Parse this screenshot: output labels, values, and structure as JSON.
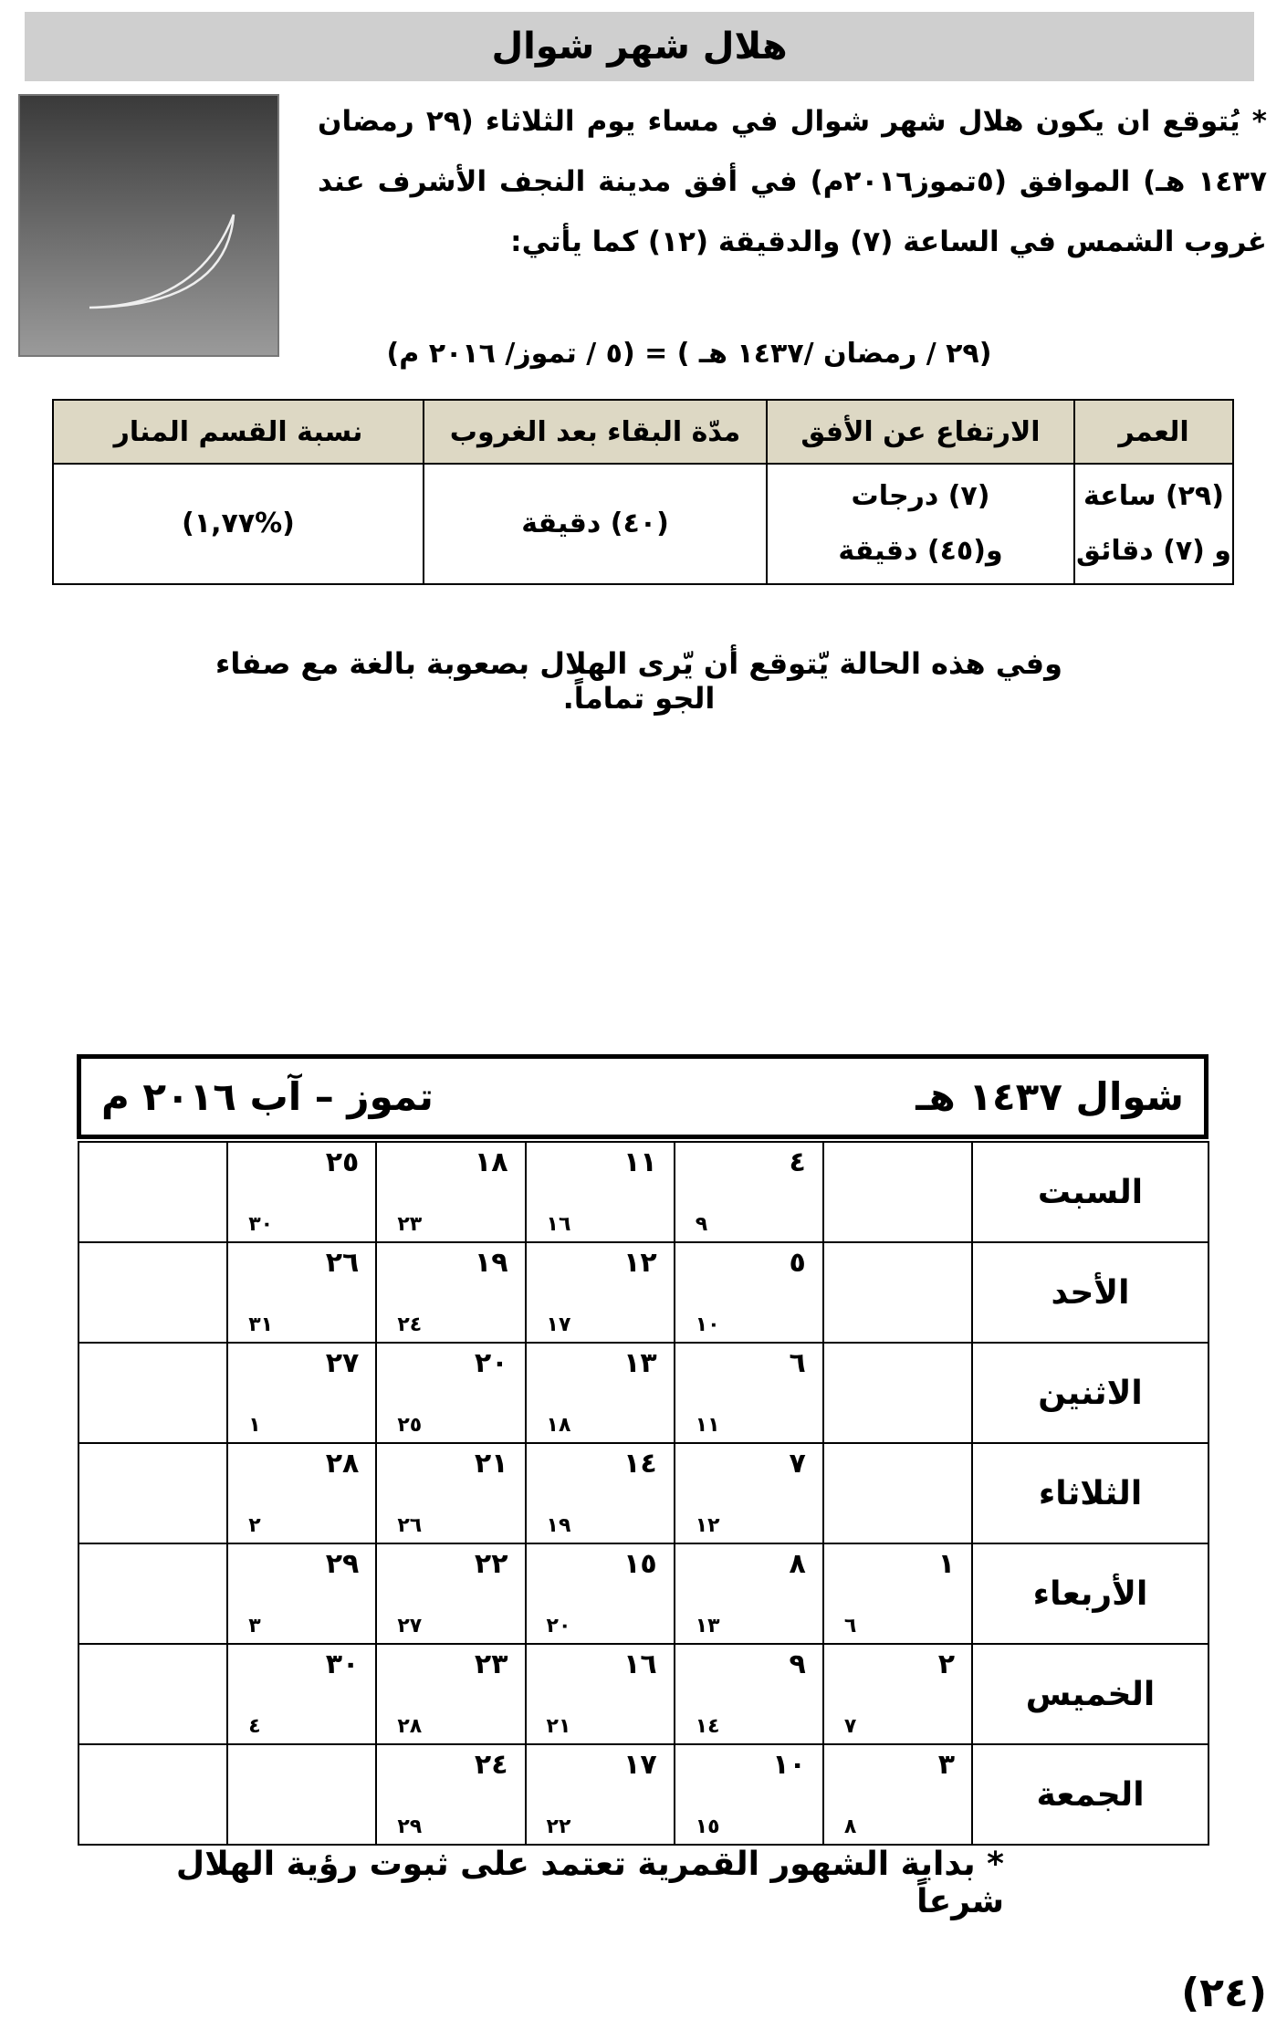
{
  "title": "هلال شهر شوال",
  "intro": "* يُتوقع ان يكون هلال شهر شوال في مساء يوم الثلاثاء (٢٩ رمضان ١٤٣٧ هـ) الموافق (٥تموز٢٠١٦م) في أفق مدينة النجف الأشرف عند غروب الشمس في الساعة (٧) والدقيقة (١٢) كما يأتي:",
  "date_line": "(٢٩ / رمضان /١٤٣٧ هـ ) = (٥ / تموز/ ٢٠١٦ م)",
  "info_table": {
    "headers": [
      "العمر",
      "الارتفاع عن الأفق",
      "مدّة البقاء بعد الغروب",
      "نسبة القسم المنار"
    ],
    "values": [
      [
        "(٢٩) ساعة",
        "و (٧) دقائق"
      ],
      [
        "(٧) درجات",
        "و(٤٥) دقيقة"
      ],
      [
        "(٤٠) دقيقة"
      ],
      [
        "(%١,٧٧)"
      ]
    ]
  },
  "visibility": "وفي هذه الحالة يّتوقع أن يّرى الهلال بصعوبة بالغة مع صفاء الجو تماماً.",
  "calendar": {
    "hijri_month": "شوال ١٤٣٧ هـ",
    "gregorian_months": "تموز – آب ٢٠١٦ م",
    "rows": [
      {
        "day": "السبت",
        "cells": [
          null,
          [
            "٤",
            "٩"
          ],
          [
            "١١",
            "١٦"
          ],
          [
            "١٨",
            "٢٣"
          ],
          [
            "٢٥",
            "٣٠"
          ],
          null
        ]
      },
      {
        "day": "الأحد",
        "cells": [
          null,
          [
            "٥",
            "١٠"
          ],
          [
            "١٢",
            "١٧"
          ],
          [
            "١٩",
            "٢٤"
          ],
          [
            "٢٦",
            "٣١"
          ],
          null
        ]
      },
      {
        "day": "الاثنين",
        "cells": [
          null,
          [
            "٦",
            "١١"
          ],
          [
            "١٣",
            "١٨"
          ],
          [
            "٢٠",
            "٢٥"
          ],
          [
            "٢٧",
            "١"
          ],
          null
        ]
      },
      {
        "day": "الثلاثاء",
        "cells": [
          null,
          [
            "٧",
            "١٢"
          ],
          [
            "١٤",
            "١٩"
          ],
          [
            "٢١",
            "٢٦"
          ],
          [
            "٢٨",
            "٢"
          ],
          null
        ]
      },
      {
        "day": "الأربعاء",
        "cells": [
          [
            "١",
            "٦"
          ],
          [
            "٨",
            "١٣"
          ],
          [
            "١٥",
            "٢٠"
          ],
          [
            "٢٢",
            "٢٧"
          ],
          [
            "٢٩",
            "٣"
          ],
          null
        ]
      },
      {
        "day": "الخميس",
        "cells": [
          [
            "٢",
            "٧"
          ],
          [
            "٩",
            "١٤"
          ],
          [
            "١٦",
            "٢١"
          ],
          [
            "٢٣",
            "٢٨"
          ],
          [
            "٣٠",
            "٤"
          ],
          null
        ]
      },
      {
        "day": "الجمعة",
        "cells": [
          [
            "٣",
            "٨"
          ],
          [
            "١٠",
            "١٥"
          ],
          [
            "١٧",
            "٢٢"
          ],
          [
            "٢٤",
            "٢٩"
          ],
          null,
          null
        ]
      }
    ]
  },
  "footnote": "* بداية الشهور القمرية تعتمد على ثبوت رؤية الهلال شرعاً",
  "page_number": "(٢٤)"
}
